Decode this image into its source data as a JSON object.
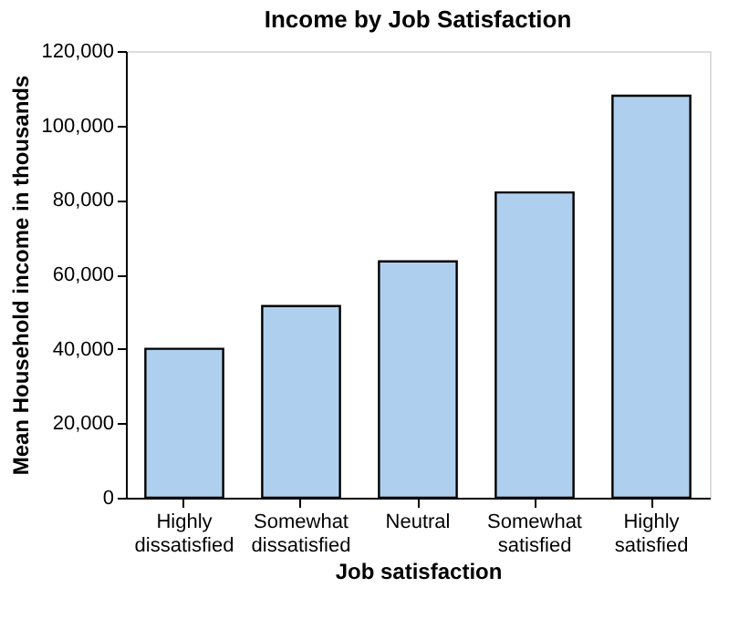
{
  "chart_data": {
    "type": "bar",
    "title": "Income by Job Satisfaction",
    "xlabel": "Job satisfaction",
    "ylabel": "Mean Household income in thousands",
    "categories": [
      "Highly dissatisfied",
      "Somewhat dissatisfied",
      "Neutral",
      "Somewhat satisfied",
      "Highly satisfied"
    ],
    "values": [
      40000,
      51500,
      63500,
      82000,
      108000
    ],
    "color": "#aed0ee",
    "ylim": [
      0,
      120000
    ],
    "yticks": [
      0,
      {
        "value": 20000,
        "label": "20,000"
      },
      {
        "value": 40000,
        "label": "40,000"
      },
      {
        "value": 60000,
        "label": "60,000"
      },
      {
        "value": 80000,
        "label": "80,000"
      },
      {
        "value": 100000,
        "label": "100,000"
      },
      {
        "value": 120000,
        "label": "120,000"
      }
    ],
    "grid": false
  }
}
